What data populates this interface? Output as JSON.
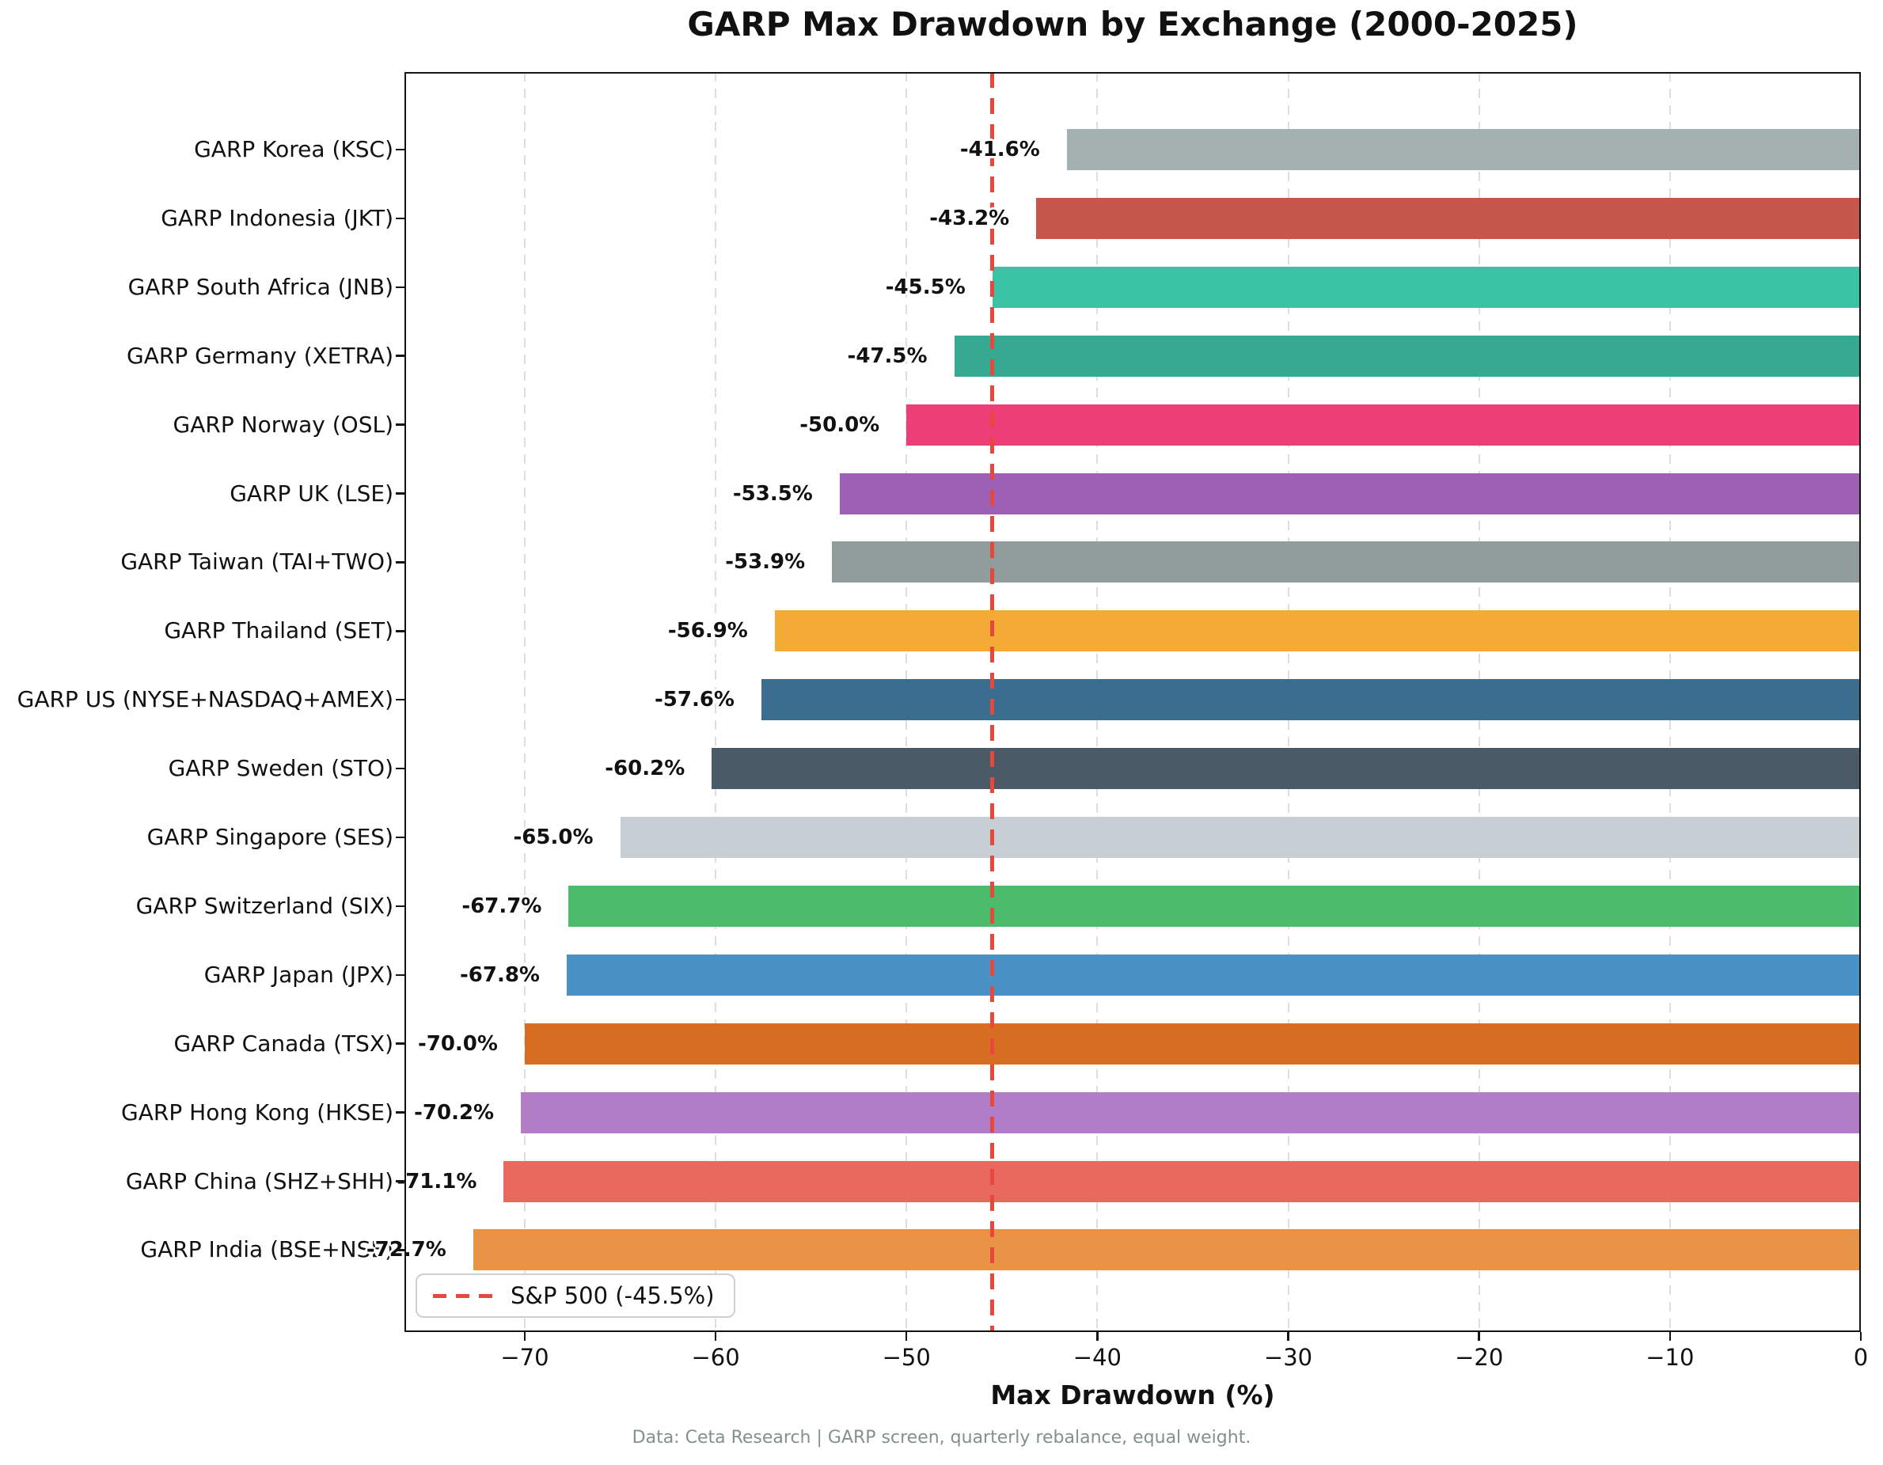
{
  "chart_data": {
    "type": "bar",
    "orientation": "horizontal",
    "title": "GARP Max Drawdown by Exchange (2000-2025)",
    "xlabel": "Max Drawdown (%)",
    "footnote": "Data: Ceta Research | GARP screen, quarterly rebalance, equal weight.",
    "xlim": [
      -76.3,
      0
    ],
    "grid": {
      "axis": "x",
      "style": "dashed",
      "color": "#dedede"
    },
    "legend": {
      "position": "lower left",
      "entries": [
        "S&P 500 (-45.5%)"
      ]
    },
    "reference_line": {
      "legend_label": "S&P 500 (-45.5%)",
      "value": -45.5,
      "color": "#e8473c",
      "style": "dashed"
    },
    "xticks": {
      "values": [
        -70,
        -60,
        -50,
        -40,
        -30,
        -20,
        -10,
        0
      ],
      "labels": [
        "−70",
        "−60",
        "−50",
        "−40",
        "−30",
        "−20",
        "−10",
        "0"
      ]
    },
    "bars": [
      {
        "category": "GARP Korea (KSC)",
        "value": -41.6,
        "label": "-41.6%",
        "color": "#a4b1b0"
      },
      {
        "category": "GARP Indonesia (JKT)",
        "value": -43.2,
        "label": "-43.2%",
        "color": "#c5574c"
      },
      {
        "category": "GARP South Africa (JNB)",
        "value": -45.5,
        "label": "-45.5%",
        "color": "#3bc3a6"
      },
      {
        "category": "GARP Germany (XETRA)",
        "value": -47.5,
        "label": "-47.5%",
        "color": "#36a993"
      },
      {
        "category": "GARP Norway (OSL)",
        "value": -50.0,
        "label": "-50.0%",
        "color": "#ed3e77"
      },
      {
        "category": "GARP UK (LSE)",
        "value": -53.5,
        "label": "-53.5%",
        "color": "#9d60b5"
      },
      {
        "category": "GARP Taiwan (TAI+TWO)",
        "value": -53.9,
        "label": "-53.9%",
        "color": "#919d9d"
      },
      {
        "category": "GARP Thailand (SET)",
        "value": -56.9,
        "label": "-56.9%",
        "color": "#f3ab35"
      },
      {
        "category": "GARP US (NYSE+NASDAQ+AMEX)",
        "value": -57.6,
        "label": "-57.6%",
        "color": "#3b6d8f"
      },
      {
        "category": "GARP Sweden (STO)",
        "value": -60.2,
        "label": "-60.2%",
        "color": "#4a5a67"
      },
      {
        "category": "GARP Singapore (SES)",
        "value": -65.0,
        "label": "-65.0%",
        "color": "#c7ced4"
      },
      {
        "category": "GARP Switzerland (SIX)",
        "value": -67.7,
        "label": "-67.7%",
        "color": "#4dbb6c"
      },
      {
        "category": "GARP Japan (JPX)",
        "value": -67.8,
        "label": "-67.8%",
        "color": "#4a92c5"
      },
      {
        "category": "GARP Canada (TSX)",
        "value": -70.0,
        "label": "-70.0%",
        "color": "#d66d23"
      },
      {
        "category": "GARP Hong Kong (HKSE)",
        "value": -70.2,
        "label": "-70.2%",
        "color": "#b07dc6"
      },
      {
        "category": "GARP China (SHZ+SHH)",
        "value": -71.1,
        "label": "-71.1%",
        "color": "#ea695e"
      },
      {
        "category": "GARP India (BSE+NSE)",
        "value": -72.7,
        "label": "-72.7%",
        "color": "#e99346"
      }
    ]
  }
}
